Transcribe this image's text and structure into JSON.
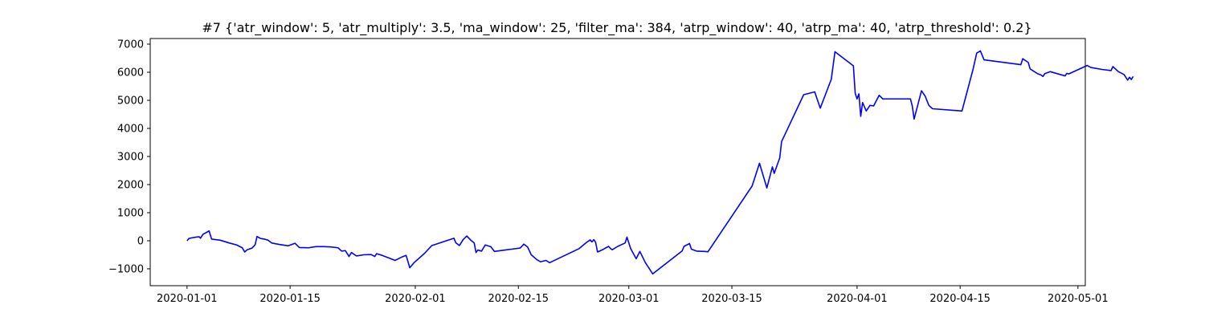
{
  "chart_data": {
    "type": "line",
    "title": "#7 {'atr_window': 5, 'atr_multiply': 3.5, 'ma_window': 25, 'filter_ma': 384, 'atrp_window': 40, 'atrp_ma': 40, 'atrp_threshold': 0.2}",
    "xlabel": "",
    "ylabel": "",
    "xlim": [
      "2019-12-27",
      "2020-05-02"
    ],
    "ylim": [
      -1600,
      7200
    ],
    "x_ticks": [
      "2020-01-01",
      "2020-01-15",
      "2020-02-01",
      "2020-02-15",
      "2020-03-01",
      "2020-03-15",
      "2020-04-01",
      "2020-04-15",
      "2020-05-01"
    ],
    "y_ticks": [
      -1000,
      0,
      1000,
      2000,
      3000,
      4000,
      5000,
      6000,
      7000
    ],
    "y_tick_labels": [
      "−1000",
      "0",
      "1000",
      "2000",
      "3000",
      "4000",
      "5000",
      "6000",
      "7000"
    ],
    "grid": false,
    "legend": "none",
    "series": [
      {
        "color": "#0000ff",
        "points": [
          [
            "2020-01-01 00:00",
            0
          ],
          [
            "2020-01-01 06:00",
            80
          ],
          [
            "2020-01-01 14:00",
            100
          ],
          [
            "2020-01-02 06:00",
            130
          ],
          [
            "2020-01-02 16:00",
            140
          ],
          [
            "2020-01-02 20:00",
            90
          ],
          [
            "2020-01-03 04:00",
            230
          ],
          [
            "2020-01-03 16:00",
            300
          ],
          [
            "2020-01-04 00:00",
            350
          ],
          [
            "2020-01-04 08:00",
            60
          ],
          [
            "2020-01-05 12:00",
            20
          ],
          [
            "2020-01-06 18:00",
            -80
          ],
          [
            "2020-01-07 18:00",
            -150
          ],
          [
            "2020-01-08 12:00",
            -250
          ],
          [
            "2020-01-08 20:00",
            -400
          ],
          [
            "2020-01-09 04:00",
            -320
          ],
          [
            "2020-01-09 20:00",
            -260
          ],
          [
            "2020-01-10 06:00",
            -140
          ],
          [
            "2020-01-10 12:00",
            150
          ],
          [
            "2020-01-11 00:00",
            80
          ],
          [
            "2020-01-11 12:00",
            60
          ],
          [
            "2020-01-12 00:00",
            20
          ],
          [
            "2020-01-12 12:00",
            -80
          ],
          [
            "2020-01-13 12:00",
            -130
          ],
          [
            "2020-01-14 18:00",
            -180
          ],
          [
            "2020-01-15 16:00",
            -90
          ],
          [
            "2020-01-16 06:00",
            -240
          ],
          [
            "2020-01-17 12:00",
            -250
          ],
          [
            "2020-01-18 12:00",
            -210
          ],
          [
            "2020-01-19 12:00",
            -210
          ],
          [
            "2020-01-20 12:00",
            -220
          ],
          [
            "2020-01-21 12:00",
            -250
          ],
          [
            "2020-01-22 00:00",
            -370
          ],
          [
            "2020-01-22 12:00",
            -350
          ],
          [
            "2020-01-23 00:00",
            -560
          ],
          [
            "2020-01-23 08:00",
            -420
          ],
          [
            "2020-01-24 00:00",
            -540
          ],
          [
            "2020-01-25 00:00",
            -500
          ],
          [
            "2020-01-26 00:00",
            -490
          ],
          [
            "2020-01-26 12:00",
            -560
          ],
          [
            "2020-01-26 18:00",
            -460
          ],
          [
            "2020-01-27 12:00",
            -520
          ],
          [
            "2020-01-28 12:00",
            -620
          ],
          [
            "2020-01-29 06:00",
            -700
          ],
          [
            "2020-01-30 06:00",
            -570
          ],
          [
            "2020-01-30 18:00",
            -520
          ],
          [
            "2020-01-31 06:00",
            -960
          ],
          [
            "2020-01-31 20:00",
            -780
          ],
          [
            "2020-02-02 06:00",
            -450
          ],
          [
            "2020-02-03 06:00",
            -170
          ],
          [
            "2020-02-06 06:00",
            90
          ],
          [
            "2020-02-06 12:00",
            -70
          ],
          [
            "2020-02-07 00:00",
            -170
          ],
          [
            "2020-02-07 12:00",
            40
          ],
          [
            "2020-02-08 00:00",
            170
          ],
          [
            "2020-02-08 12:00",
            30
          ],
          [
            "2020-02-09 00:00",
            -80
          ],
          [
            "2020-02-09 06:00",
            -420
          ],
          [
            "2020-02-09 12:00",
            -330
          ],
          [
            "2020-02-10 00:00",
            -370
          ],
          [
            "2020-02-10 12:00",
            -150
          ],
          [
            "2020-02-11 06:00",
            -210
          ],
          [
            "2020-02-11 18:00",
            -380
          ],
          [
            "2020-02-15 06:00",
            -260
          ],
          [
            "2020-02-15 18:00",
            -120
          ],
          [
            "2020-02-16 06:00",
            -220
          ],
          [
            "2020-02-16 18:00",
            -500
          ],
          [
            "2020-02-17 12:00",
            -670
          ],
          [
            "2020-02-18 00:00",
            -750
          ],
          [
            "2020-02-18 18:00",
            -700
          ],
          [
            "2020-02-19 06:00",
            -780
          ],
          [
            "2020-02-23 06:00",
            -280
          ],
          [
            "2020-02-24 06:00",
            -60
          ],
          [
            "2020-02-24 18:00",
            30
          ],
          [
            "2020-02-25 00:00",
            -40
          ],
          [
            "2020-02-25 06:00",
            40
          ],
          [
            "2020-02-25 12:00",
            -60
          ],
          [
            "2020-02-25 18:00",
            -400
          ],
          [
            "2020-02-26 12:00",
            -310
          ],
          [
            "2020-02-27 06:00",
            -200
          ],
          [
            "2020-02-27 12:00",
            -270
          ],
          [
            "2020-02-27 18:00",
            -320
          ],
          [
            "2020-02-28 12:00",
            -200
          ],
          [
            "2020-02-29 12:00",
            -80
          ],
          [
            "2020-02-29 18:00",
            130
          ],
          [
            "2020-03-01 06:00",
            -280
          ],
          [
            "2020-03-02 00:00",
            -640
          ],
          [
            "2020-03-02 12:00",
            -380
          ],
          [
            "2020-03-03 06:00",
            -780
          ],
          [
            "2020-03-04 06:00",
            -1180
          ],
          [
            "2020-03-08 06:00",
            -360
          ],
          [
            "2020-03-08 12:00",
            -200
          ],
          [
            "2020-03-09 06:00",
            -100
          ],
          [
            "2020-03-09 12:00",
            -300
          ],
          [
            "2020-03-10 06:00",
            -370
          ],
          [
            "2020-03-11 06:00",
            -380
          ],
          [
            "2020-03-11 18:00",
            -390
          ],
          [
            "2020-03-17 18:00",
            1950
          ],
          [
            "2020-03-18 18:00",
            2760
          ],
          [
            "2020-03-19 18:00",
            1880
          ],
          [
            "2020-03-20 12:00",
            2630
          ],
          [
            "2020-03-20 18:00",
            2400
          ],
          [
            "2020-03-21 12:00",
            2950
          ],
          [
            "2020-03-21 18:00",
            3530
          ],
          [
            "2020-03-24 18:00",
            5200
          ],
          [
            "2020-03-26 06:00",
            5300
          ],
          [
            "2020-03-27 00:00",
            4720
          ],
          [
            "2020-03-28 12:00",
            5750
          ],
          [
            "2020-03-29 00:00",
            6730
          ],
          [
            "2020-03-31 12:00",
            6230
          ],
          [
            "2020-03-31 18:00",
            5250
          ],
          [
            "2020-04-01 00:00",
            5050
          ],
          [
            "2020-04-01 06:00",
            5230
          ],
          [
            "2020-04-01 12:00",
            4430
          ],
          [
            "2020-04-01 18:00",
            4920
          ],
          [
            "2020-04-02 06:00",
            4620
          ],
          [
            "2020-04-02 18:00",
            4820
          ],
          [
            "2020-04-03 06:00",
            4800
          ],
          [
            "2020-04-04 00:00",
            5180
          ],
          [
            "2020-04-04 12:00",
            5050
          ],
          [
            "2020-04-08 06:00",
            5050
          ],
          [
            "2020-04-08 12:00",
            4800
          ],
          [
            "2020-04-08 18:00",
            4330
          ],
          [
            "2020-04-09 18:00",
            5340
          ],
          [
            "2020-04-10 06:00",
            5150
          ],
          [
            "2020-04-10 18:00",
            4820
          ],
          [
            "2020-04-11 06:00",
            4700
          ],
          [
            "2020-04-15 06:00",
            4620
          ],
          [
            "2020-04-16 18:00",
            6100
          ],
          [
            "2020-04-17 06:00",
            6680
          ],
          [
            "2020-04-17 18:00",
            6760
          ],
          [
            "2020-04-18 06:00",
            6440
          ],
          [
            "2020-04-23 06:00",
            6270
          ],
          [
            "2020-04-23 12:00",
            6480
          ],
          [
            "2020-04-24 06:00",
            6350
          ],
          [
            "2020-04-24 12:00",
            6120
          ],
          [
            "2020-04-25 12:00",
            5950
          ],
          [
            "2020-04-26 00:00",
            5900
          ],
          [
            "2020-04-26 06:00",
            5850
          ],
          [
            "2020-04-26 12:00",
            5950
          ],
          [
            "2020-04-27 06:00",
            6020
          ],
          [
            "2020-04-29 06:00",
            5870
          ],
          [
            "2020-04-29 12:00",
            5960
          ],
          [
            "2020-04-29 18:00",
            5940
          ],
          [
            "2020-05-02 06:00",
            6240
          ],
          [
            "2020-05-02 18:00",
            6170
          ],
          [
            "2020-05-04 06:00",
            6100
          ],
          [
            "2020-05-05 12:00",
            6060
          ],
          [
            "2020-05-05 18:00",
            6200
          ],
          [
            "2020-05-06 12:00",
            6020
          ],
          [
            "2020-05-07 06:00",
            5920
          ],
          [
            "2020-05-07 12:00",
            5820
          ],
          [
            "2020-05-07 18:00",
            5720
          ],
          [
            "2020-05-08 00:00",
            5820
          ],
          [
            "2020-05-08 06:00",
            5740
          ],
          [
            "2020-05-08 12:00",
            5850
          ]
        ]
      }
    ]
  }
}
